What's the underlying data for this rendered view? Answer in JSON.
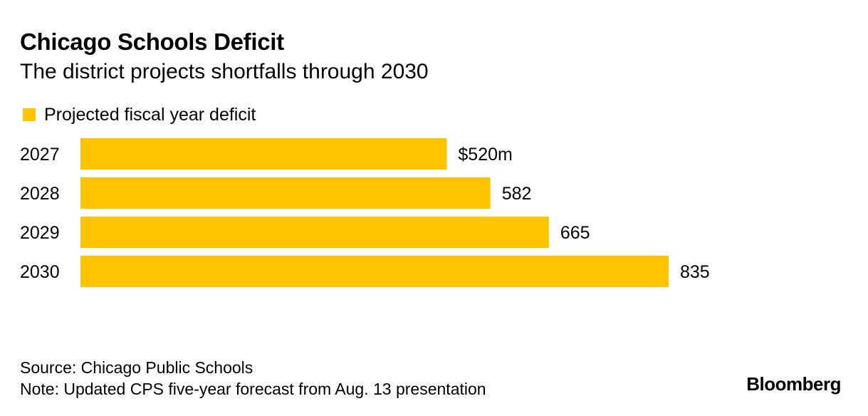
{
  "chart_data": {
    "type": "bar",
    "orientation": "horizontal",
    "title": "Chicago Schools Deficit",
    "subtitle": "The district projects shortfalls through 2030",
    "categories": [
      "2027",
      "2028",
      "2029",
      "2030"
    ],
    "series": [
      {
        "name": "Projected fiscal year deficit",
        "values": [
          520,
          582,
          665,
          835
        ],
        "labels": [
          "$520m",
          "582",
          "665",
          "835"
        ],
        "color": "#FFC400"
      }
    ],
    "xlim": [
      0,
      835
    ],
    "grid": false,
    "legend_position": "top-left",
    "source": "Source: Chicago Public Schools",
    "note": "Note: Updated CPS five-year forecast from Aug. 13 presentation"
  },
  "brand": "Bloomberg"
}
